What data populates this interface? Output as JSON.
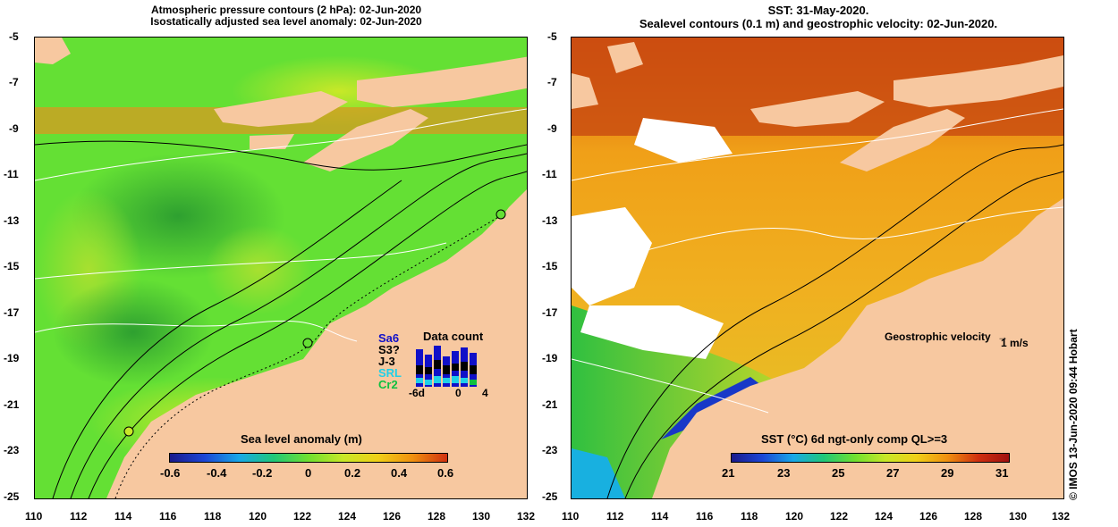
{
  "left_panel": {
    "title_line1": "Atmospheric pressure contours (2 hPa): 02-Jun-2020",
    "title_line2": "Isostatically adjusted sea level anomaly: 02-Jun-2020",
    "colorbar_label": "Sea level anomaly (m)",
    "colorbar_ticks": [
      "-0.6",
      "-0.4",
      "-0.2",
      "0",
      "0.2",
      "0.4",
      "0.6"
    ],
    "data_count": {
      "title": "Data count",
      "satellites": [
        {
          "name": "Sa6",
          "color": "#1010c8"
        },
        {
          "name": "S3?",
          "color": "#000000"
        },
        {
          "name": "J-3",
          "color": "#000000"
        },
        {
          "name": "SRL",
          "color": "#20d0e8"
        },
        {
          "name": "Cr2",
          "color": "#10c040"
        }
      ],
      "axis_labels": [
        "-6d",
        "0",
        "4"
      ]
    }
  },
  "right_panel": {
    "title_line1": "SST: 31-May-2020.",
    "title_line2": "Sealevel contours (0.1 m) and geostrophic velocity: 02-Jun-2020.",
    "colorbar_label": "SST (°C) 6d ngt-only comp QL>=3",
    "colorbar_ticks": [
      "21",
      "23",
      "25",
      "27",
      "29",
      "31"
    ],
    "velocity_legend": "Geostrophic velocity",
    "velocity_scale": "1 m/s"
  },
  "y_ticks": [
    "-5",
    "-7",
    "-9",
    "-11",
    "-13",
    "-15",
    "-17",
    "-19",
    "-21",
    "-23",
    "-25"
  ],
  "x_ticks": [
    "110",
    "112",
    "114",
    "116",
    "118",
    "120",
    "122",
    "124",
    "126",
    "128",
    "130",
    "132"
  ],
  "credit": "© IMOS 13-Jun-2020 09:44 Hobart",
  "colors": {
    "land": "#f7c8a0",
    "sla_ocean": "#6ee83a",
    "sst_ocean": "#f2a21a",
    "cloud": "#ffffff"
  }
}
